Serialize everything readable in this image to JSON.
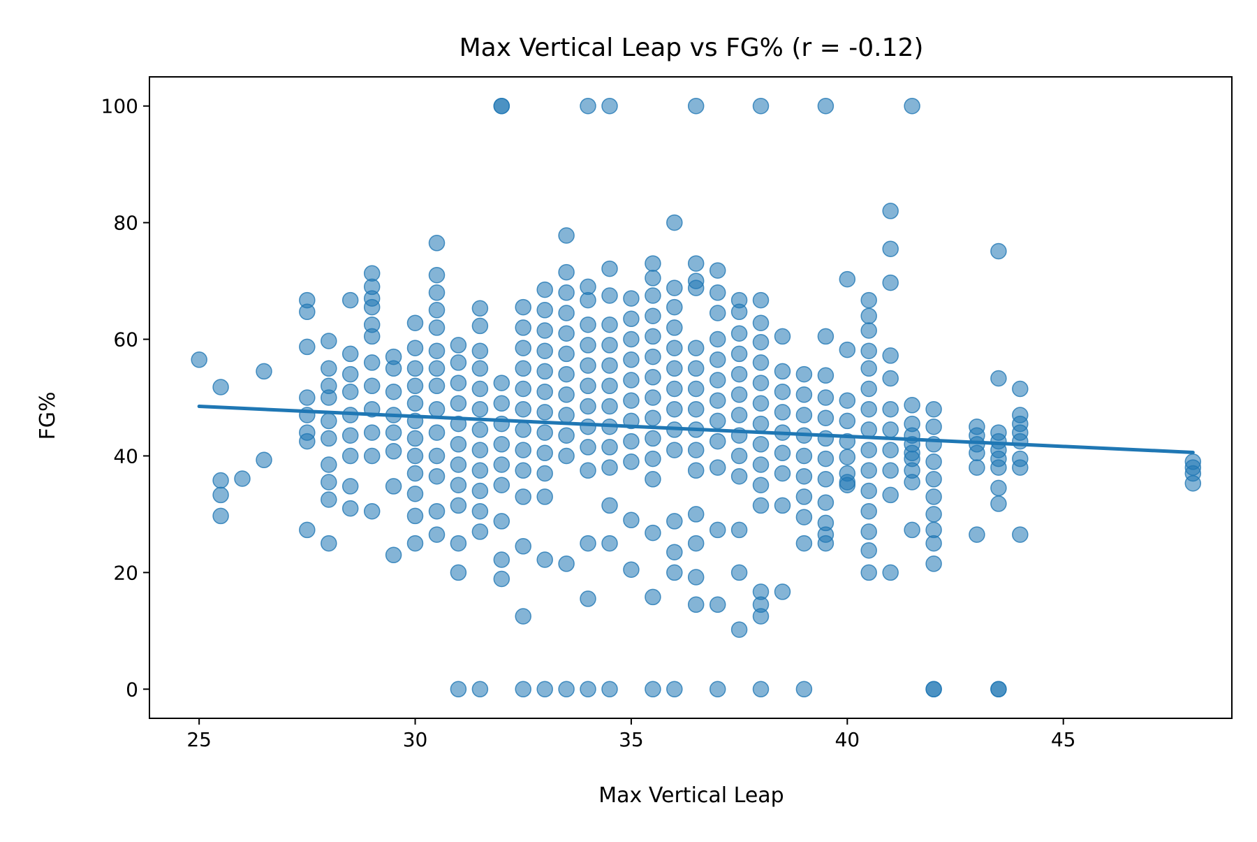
{
  "chart_data": {
    "type": "scatter",
    "title": "Max Vertical Leap vs FG% (r = -0.12)",
    "xlabel": "Max Vertical Leap",
    "ylabel": "FG%",
    "xlim": [
      23.85,
      48.9
    ],
    "ylim": [
      -5,
      105
    ],
    "xticks": [
      25,
      30,
      35,
      40,
      45
    ],
    "yticks": [
      0,
      20,
      40,
      60,
      80,
      100
    ],
    "grid": false,
    "legend": "none",
    "point_color": "#1f77b4",
    "line_color": "#1f77b4",
    "regression": {
      "x": [
        25,
        48
      ],
      "y": [
        48.5,
        40.6
      ]
    },
    "points": {
      "x": [
        25,
        25.5,
        25.5,
        25.5,
        25.5,
        26,
        26.5,
        26.5,
        27.5,
        27.5,
        27.5,
        27.5,
        27.5,
        27.5,
        27.5,
        27.5,
        28,
        28,
        28,
        28,
        28,
        28,
        28,
        28,
        28,
        28,
        28.5,
        28.5,
        28.5,
        28.5,
        28.5,
        28.5,
        28.5,
        28.5,
        28.5,
        29,
        29,
        29,
        29,
        29,
        29,
        29,
        29,
        29,
        29,
        29,
        29,
        29.5,
        29.5,
        29.5,
        29.5,
        29.5,
        29.5,
        29.5,
        29.5,
        30,
        30,
        30,
        30,
        30,
        30,
        30,
        30,
        30,
        30,
        30,
        30,
        30.5,
        30.5,
        30.5,
        30.5,
        30.5,
        30.5,
        30.5,
        30.5,
        30.5,
        30.5,
        30.5,
        30.5,
        30.5,
        30.5,
        31,
        31,
        31,
        31,
        31,
        31,
        31,
        31,
        31,
        31,
        31,
        31.5,
        31.5,
        31.5,
        31.5,
        31.5,
        31.5,
        31.5,
        31.5,
        31.5,
        31.5,
        31.5,
        31.5,
        32,
        32,
        32,
        32,
        32,
        32,
        32,
        32,
        32,
        32,
        32.5,
        32.5,
        32.5,
        32.5,
        32.5,
        32.5,
        32.5,
        32.5,
        32.5,
        32.5,
        32.5,
        32.5,
        33,
        33,
        33,
        33,
        33,
        33,
        33,
        33,
        33,
        33,
        33,
        33,
        33.5,
        33.5,
        33.5,
        33.5,
        33.5,
        33.5,
        33.5,
        33.5,
        33.5,
        33.5,
        33.5,
        33.5,
        34,
        34,
        34,
        34,
        34,
        34,
        34,
        34,
        34,
        34,
        34,
        34,
        34.5,
        34.5,
        34.5,
        34.5,
        34.5,
        34.5,
        34.5,
        34.5,
        34.5,
        34.5,
        34.5,
        34.5,
        35,
        35,
        35,
        35,
        35,
        35,
        35,
        35,
        35,
        35,
        35,
        35.5,
        35.5,
        35.5,
        35.5,
        35.5,
        35.5,
        35.5,
        35.5,
        35.5,
        35.5,
        35.5,
        35.5,
        35.5,
        35.5,
        36,
        36,
        36,
        36,
        36,
        36,
        36,
        36,
        36,
        36,
        36,
        36,
        36,
        36.5,
        36.5,
        36.5,
        36.5,
        36.5,
        36.5,
        36.5,
        36.5,
        36.5,
        36.5,
        36.5,
        36.5,
        36.5,
        36.5,
        37,
        37,
        37,
        37,
        37,
        37,
        37,
        37,
        37,
        37,
        37,
        37,
        37.5,
        37.5,
        37.5,
        37.5,
        37.5,
        37.5,
        37.5,
        37.5,
        37.5,
        37.5,
        37.5,
        37.5,
        37.5,
        38,
        38,
        38,
        38,
        38,
        38,
        38,
        38,
        38,
        38,
        38,
        38,
        38,
        38,
        38.5,
        38.5,
        38.5,
        38.5,
        38.5,
        38.5,
        38.5,
        38.5,
        38.5,
        39,
        39,
        39,
        39,
        39,
        39,
        39,
        39,
        39,
        39.5,
        39.5,
        39.5,
        39.5,
        39.5,
        39.5,
        39.5,
        39.5,
        39.5,
        39.5,
        39.5,
        40,
        40,
        40,
        40,
        40,
        40,
        40,
        40,
        40,
        40.5,
        40.5,
        40.5,
        40.5,
        40.5,
        40.5,
        40.5,
        40.5,
        40.5,
        40.5,
        40.5,
        40.5,
        40.5,
        40.5,
        40.5,
        41,
        41,
        41,
        41,
        41,
        41,
        41,
        41,
        41,
        41,
        41,
        41.5,
        41.5,
        41.5,
        41.5,
        41.5,
        41.5,
        41.5,
        41.5,
        41.5,
        42,
        42,
        42,
        42,
        42,
        42,
        42,
        42,
        42,
        42,
        42,
        43,
        43,
        43,
        43,
        43,
        43,
        43.5,
        43.5,
        43.5,
        43.5,
        43.5,
        43.5,
        43.5,
        43.5,
        43.5,
        43.5,
        44,
        44,
        44,
        44,
        44,
        44,
        44,
        44,
        48,
        48,
        48,
        48
      ],
      "y": [
        56.5,
        51.8,
        35.8,
        33.3,
        29.7,
        36.1,
        54.5,
        39.3,
        66.7,
        64.7,
        58.7,
        50,
        47,
        44,
        42.5,
        27.3,
        59.7,
        55,
        52,
        50,
        46,
        43,
        38.5,
        35.5,
        32.5,
        25,
        66.7,
        57.5,
        54,
        51,
        47,
        43.5,
        40,
        34.8,
        31,
        71.3,
        69,
        67,
        65.5,
        62.5,
        60.5,
        56,
        52,
        48,
        44,
        40,
        30.5,
        57,
        55,
        51,
        47,
        44,
        40.8,
        34.8,
        23,
        62.8,
        58.5,
        55,
        52,
        49,
        46,
        43,
        40,
        37,
        33.5,
        29.7,
        25,
        76.5,
        71,
        68,
        65,
        62,
        58,
        55,
        52,
        48,
        44,
        40,
        36.5,
        30.5,
        26.5,
        59,
        56,
        52.5,
        49,
        45.5,
        42,
        38.5,
        35,
        31.5,
        25,
        20,
        65.3,
        62.3,
        58,
        55,
        51.5,
        48,
        44.5,
        41,
        37.5,
        34,
        30.5,
        27,
        52.5,
        49,
        45.5,
        42,
        38.5,
        35,
        28.8,
        22.2,
        18.9,
        100,
        65.5,
        62,
        58.5,
        55,
        51.5,
        48,
        44.5,
        41,
        37.5,
        33,
        24.5,
        12.5,
        68.5,
        65,
        61.5,
        58,
        54.5,
        51,
        47.5,
        44,
        40.5,
        37,
        33,
        22.2,
        77.8,
        71.5,
        68,
        64.5,
        61,
        57.5,
        54,
        50.5,
        47,
        43.5,
        40,
        21.5,
        69,
        66.7,
        62.5,
        59,
        55.5,
        52,
        48.5,
        45,
        41.5,
        37.5,
        25,
        15.5,
        72.1,
        67.5,
        62.5,
        59,
        55.5,
        52,
        48.5,
        45,
        41.5,
        38,
        31.5,
        25,
        67,
        63.5,
        60,
        56.5,
        53,
        49.5,
        46,
        42.5,
        39,
        29,
        20.5,
        73,
        70.5,
        67.5,
        64,
        60.5,
        57,
        53.5,
        50,
        46.5,
        43,
        39.5,
        36,
        26.8,
        15.8,
        80,
        68.8,
        65.5,
        62,
        58.5,
        55,
        51.5,
        48,
        44.5,
        41,
        28.8,
        23.5,
        20,
        73,
        70,
        68.8,
        58.5,
        55,
        51.5,
        48,
        44.5,
        41,
        37.5,
        30,
        25,
        19.2,
        14.5,
        71.8,
        68,
        64.5,
        60,
        56.5,
        53,
        49.5,
        46,
        42.5,
        38,
        27.3,
        14.5,
        66.7,
        64.7,
        61,
        57.5,
        54,
        50.5,
        47,
        43.5,
        40,
        36.5,
        27.3,
        20,
        10.2,
        66.7,
        62.8,
        59.5,
        56,
        52.5,
        49,
        45.5,
        42,
        38.5,
        35,
        31.5,
        16.7,
        14.5,
        12.5,
        60.5,
        54.5,
        51,
        47.5,
        44,
        40.5,
        37,
        31.5,
        16.7,
        54,
        50.5,
        47,
        43.5,
        40,
        36.5,
        33,
        29.5,
        25,
        60.5,
        53.8,
        50,
        46.5,
        43,
        39.5,
        36,
        32,
        28.5,
        26.5,
        25,
        70.3,
        58.2,
        49.5,
        46,
        42.5,
        39.8,
        37,
        35.5,
        35,
        66.7,
        64,
        61.5,
        58,
        55,
        51.5,
        48,
        44.5,
        41,
        37.5,
        34,
        30.5,
        27,
        23.8,
        20,
        82,
        75.5,
        69.7,
        57.2,
        53.3,
        48,
        44.5,
        41,
        37.5,
        33.3,
        20,
        48.7,
        45.5,
        43.5,
        42,
        40.5,
        39.5,
        37.5,
        35.5,
        27.3,
        48,
        45,
        42,
        39,
        36,
        33,
        30,
        27.3,
        25,
        21.5,
        0,
        45,
        43.5,
        42,
        40.5,
        38,
        26.5,
        75.1,
        53.3,
        44,
        42.5,
        41,
        39.5,
        38,
        34.5,
        31.8,
        0,
        51.5,
        47,
        45.5,
        44,
        42.5,
        39.5,
        38,
        26.5,
        39,
        38,
        37,
        35.3
      ]
    },
    "zero_row_x": [
      31,
      31.5,
      32.5,
      33,
      33.5,
      34,
      34.5,
      35.5,
      36,
      37,
      38,
      39,
      42,
      43.5
    ],
    "hundred_row_x": [
      32,
      34,
      34.5,
      36.5,
      38,
      39.5,
      41.5
    ]
  }
}
